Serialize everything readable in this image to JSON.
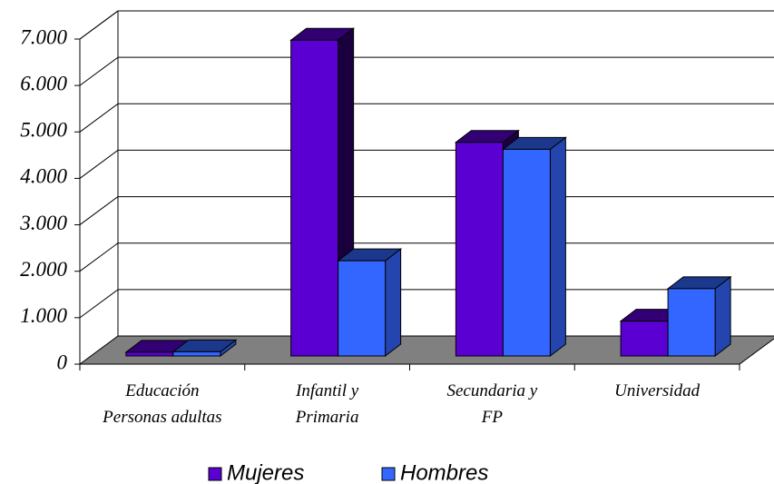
{
  "chart_data": {
    "type": "bar3d",
    "categories": [
      "Educación\nPersonas adultas",
      "Infantil y\nPrimaria",
      "Secundaria y\nFP",
      "Universidad"
    ],
    "series": [
      {
        "name": "Mujeres",
        "color": "#5a00d2",
        "values": [
          80,
          6800,
          4600,
          750
        ]
      },
      {
        "name": "Hombres",
        "color": "#3366ff",
        "values": [
          90,
          2050,
          4450,
          1450
        ]
      }
    ],
    "ylim": [
      0,
      7000
    ],
    "yticks": [
      0,
      {
        "value": 1000,
        "label": "1.000"
      },
      {
        "value": 2000,
        "label": "2.000"
      },
      {
        "value": 3000,
        "label": "3.000"
      },
      {
        "value": 4000,
        "label": "4.000"
      },
      {
        "value": 5000,
        "label": "5.000"
      },
      {
        "value": 6000,
        "label": "6.000"
      },
      {
        "value": 7000,
        "label": "7.000"
      }
    ],
    "grid": true
  }
}
